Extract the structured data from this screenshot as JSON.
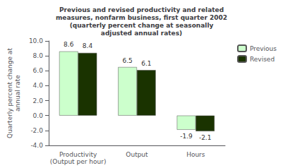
{
  "chart_data": {
    "type": "bar",
    "title": "Previous and revised productivity and related\nmeasures, nonfarm business, first quarter 2002\n(quarterly percent change at seasonally\nadjusted annual rates)",
    "categories": [
      "Productivity\n(Output per hour)",
      "Output",
      "Hours"
    ],
    "series": [
      {
        "name": "Previous",
        "color": "#ccffcc",
        "values": [
          8.6,
          6.5,
          -1.9
        ]
      },
      {
        "name": "Revised",
        "color": "#1a3300",
        "values": [
          8.4,
          6.1,
          -2.1
        ]
      }
    ],
    "ylabel": "Quarterly percent change at\nannual rate",
    "ylim": [
      -4.0,
      10.0
    ],
    "yticks": [
      {
        "value": -4.0,
        "label": "-4.0"
      },
      {
        "value": -2.0,
        "label": "-2.0"
      },
      {
        "value": 0.0,
        "label": "0.0"
      },
      {
        "value": 2.0,
        "label": "2.0"
      },
      {
        "value": 4.0,
        "label": "4.0"
      },
      {
        "value": 6.0,
        "label": "6.0"
      },
      {
        "value": 8.0,
        "label": "8.0"
      },
      {
        "value": 10.0,
        "label": "10.0"
      }
    ],
    "data_labels": true,
    "legend": "upper right",
    "grid": false
  }
}
